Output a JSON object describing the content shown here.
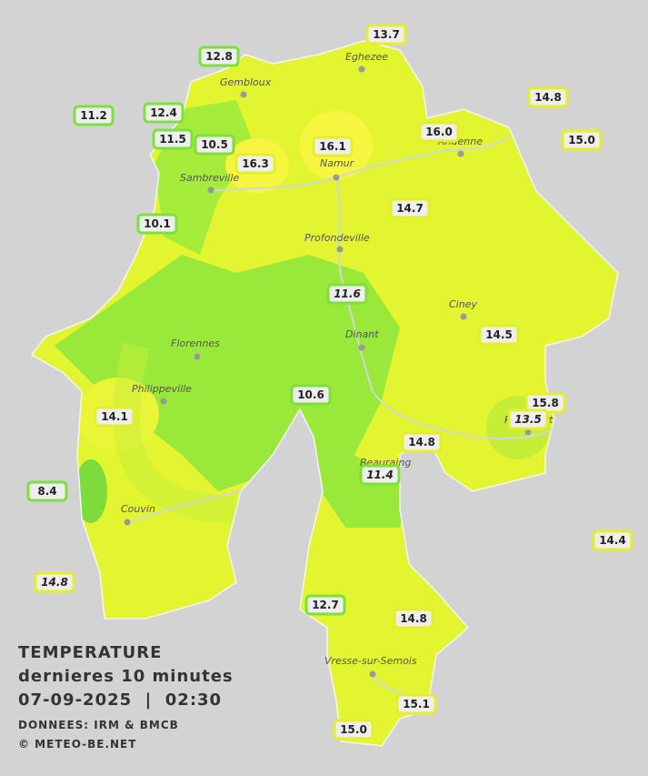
{
  "stations": [
    {
      "value": "13.7"
    },
    {
      "value": "12.8"
    },
    {
      "value": "14.8"
    },
    {
      "value": "11.2"
    },
    {
      "value": "12.4"
    },
    {
      "value": "16.0"
    },
    {
      "value": "15.0"
    },
    {
      "value": "11.5"
    },
    {
      "value": "10.5"
    },
    {
      "value": "16.3"
    },
    {
      "value": "16.1"
    },
    {
      "value": "14.7"
    },
    {
      "value": "10.1"
    },
    {
      "value": "11.6",
      "italic": true
    },
    {
      "value": "14.5"
    },
    {
      "value": "10.6"
    },
    {
      "value": "15.8"
    },
    {
      "value": "13.5",
      "italic": true
    },
    {
      "value": "14.1"
    },
    {
      "value": "14.8"
    },
    {
      "value": "11.4",
      "italic": true
    },
    {
      "value": "8.4"
    },
    {
      "value": "14.4"
    },
    {
      "value": "14.8",
      "italic": true
    },
    {
      "value": "12.7"
    },
    {
      "value": "14.8"
    },
    {
      "value": "15.1"
    },
    {
      "value": "15.0"
    }
  ],
  "cities": [
    "Eghezee",
    "Gembloux",
    "Andenne",
    "Namur",
    "Sambreville",
    "Profondeville",
    "Ciney",
    "Florennes",
    "Dinant",
    "Philippeville",
    "Rochefort",
    "Beauraing",
    "Couvin",
    "Vresse-sur-Semois"
  ],
  "legend": {
    "title": "TEMPERATURE",
    "subtitle": "dernieres 10 minutes",
    "datetime": "07-09-2025  |  02:30",
    "source": "DONNEES: IRM & BMCB",
    "copyright": "© METEO-BE.NET"
  }
}
